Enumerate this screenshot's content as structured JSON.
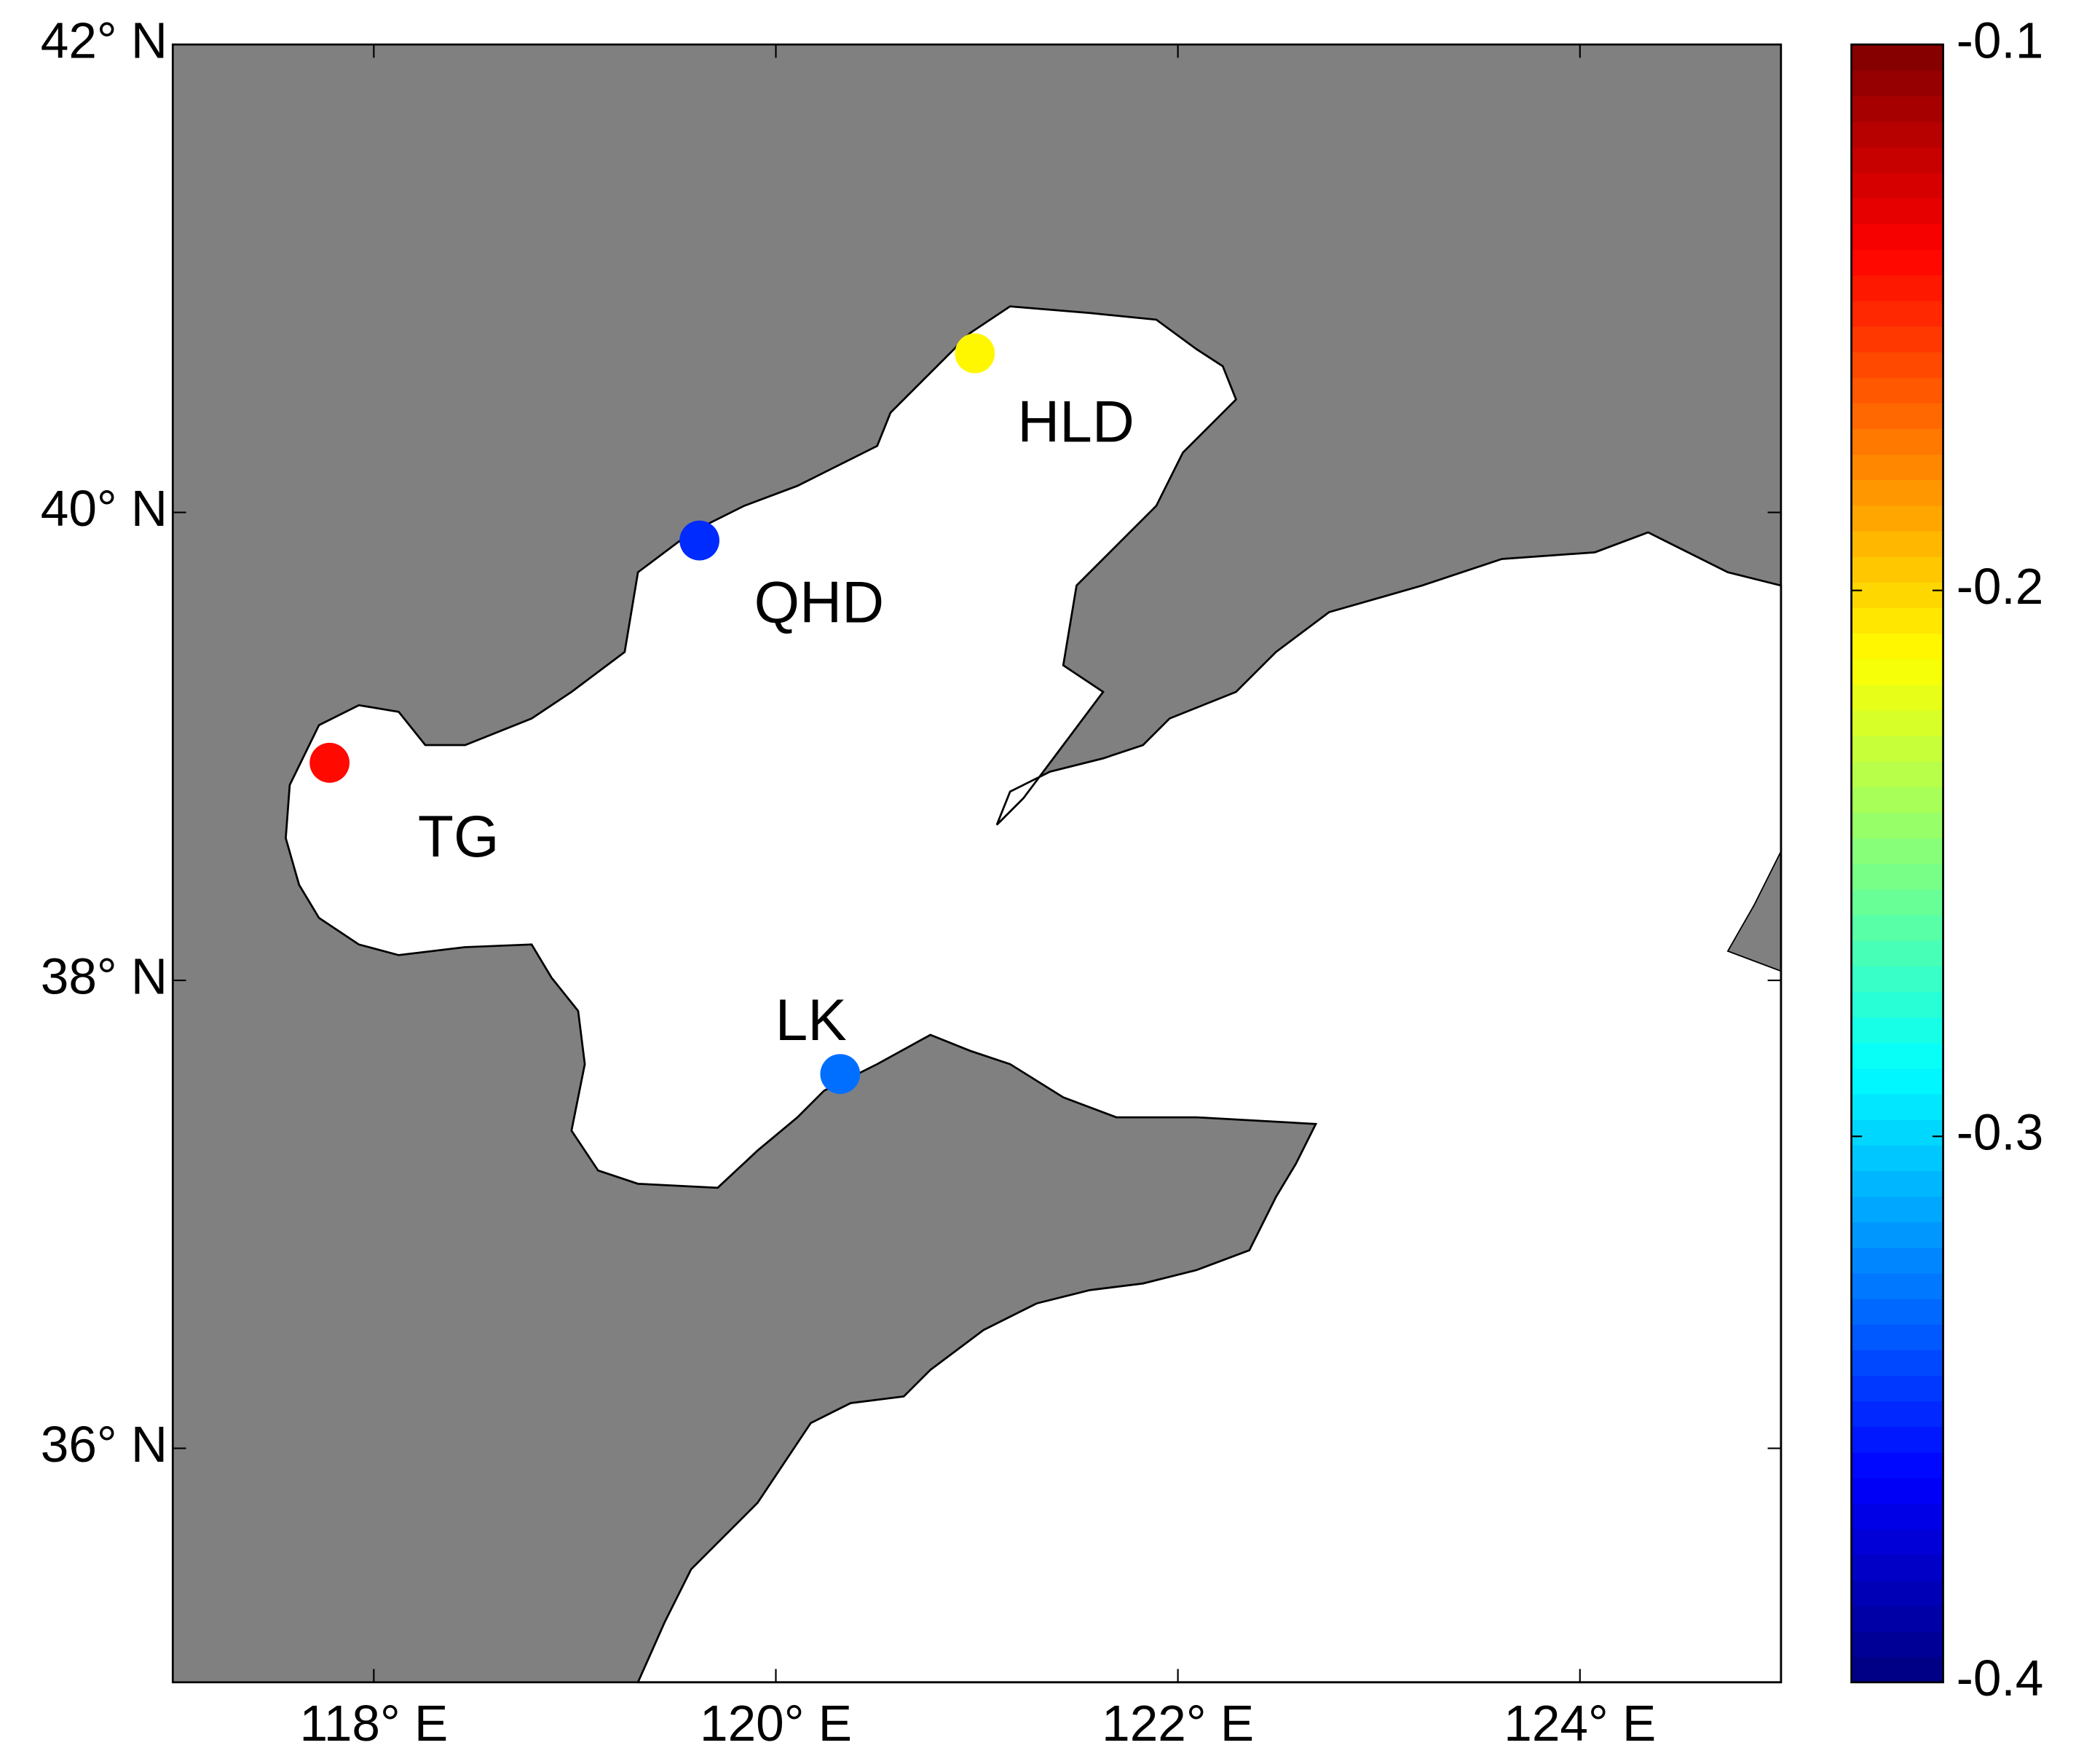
{
  "chart_data": {
    "type": "scatter",
    "x": [
      117.78,
      119.62,
      120.99,
      120.32
    ],
    "y": [
      38.93,
      39.88,
      40.68,
      37.6
    ],
    "values": [
      -0.14,
      -0.35,
      -0.21,
      -0.33
    ],
    "labels": [
      "TG",
      "QHD",
      "HLD",
      "LK"
    ],
    "xlim": [
      117,
      125
    ],
    "ylim": [
      35,
      42
    ],
    "xticks": [
      {
        "value": 118,
        "label": "118° E"
      },
      {
        "value": 120,
        "label": "120° E"
      },
      {
        "value": 122,
        "label": "122° E"
      },
      {
        "value": 124,
        "label": "124° E"
      }
    ],
    "yticks": [
      {
        "value": 36,
        "label": "36° N"
      },
      {
        "value": 38,
        "label": "38° N"
      },
      {
        "value": 40,
        "label": "40° N"
      },
      {
        "value": 42,
        "label": "42° N"
      }
    ],
    "colorbar": {
      "colormap": "jet",
      "clim": [
        -0.4,
        -0.1
      ],
      "ticks": [
        -0.4,
        -0.3,
        -0.2,
        -0.1
      ]
    }
  }
}
